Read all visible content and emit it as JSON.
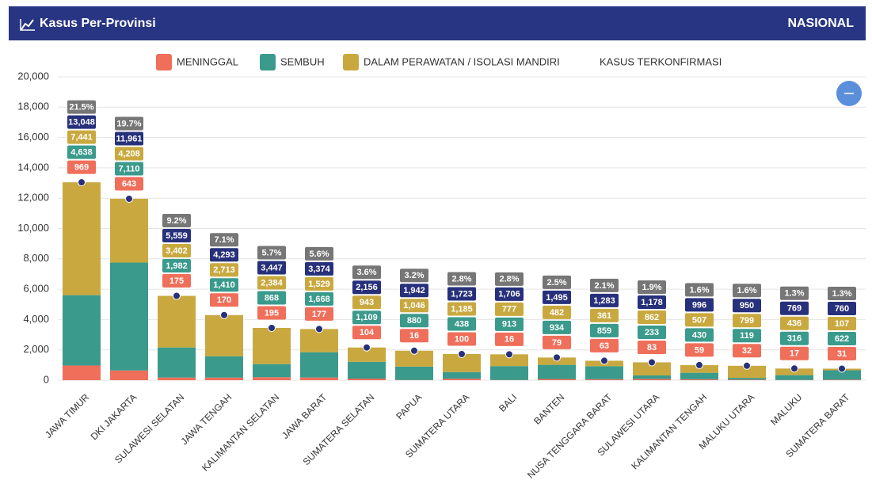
{
  "header": {
    "title": "Kasus Per-Provinsi",
    "scope": "NASIONAL"
  },
  "chart_data": {
    "type": "bar",
    "stacked": true,
    "grid": true,
    "categories": [
      "JAWA TIMUR",
      "DKI JAKARTA",
      "SULAWESI SELATAN",
      "JAWA TENGAH",
      "KALIMANTAN SELATAN",
      "JAWA BARAT",
      "SUMATERA SELATAN",
      "PAPUA",
      "SUMATERA UTARA",
      "BALI",
      "BANTEN",
      "NUSA TENGGARA BARAT",
      "SULAWESI UTARA",
      "KALIMANTAN TENGAH",
      "MALUKU UTARA",
      "MALUKU",
      "SUMATERA BARAT"
    ],
    "series": [
      {
        "name": "MENINGGAL",
        "color": "#ef6f5b",
        "values": [
          969,
          643,
          175,
          170,
          195,
          177,
          104,
          16,
          100,
          16,
          79,
          63,
          83,
          59,
          32,
          17,
          31
        ],
        "value_labels": [
          "969",
          "643",
          "175",
          "170",
          "195",
          "177",
          "104",
          "16",
          "100",
          "16",
          "79",
          "63",
          "83",
          "59",
          "32",
          "17",
          "31"
        ]
      },
      {
        "name": "SEMBUH",
        "color": "#3a9a8c",
        "values": [
          4638,
          7110,
          1982,
          1410,
          868,
          1668,
          1109,
          880,
          438,
          913,
          934,
          859,
          233,
          430,
          119,
          316,
          622
        ],
        "value_labels": [
          "4,638",
          "7,110",
          "1,982",
          "1,410",
          "868",
          "1,668",
          "1,109",
          "880",
          "438",
          "913",
          "934",
          "859",
          "233",
          "430",
          "119",
          "316",
          "622"
        ]
      },
      {
        "name": "DALAM PERAWATAN / ISOLASI MANDIRI",
        "color": "#c9a93f",
        "values": [
          7441,
          4208,
          3402,
          2713,
          2384,
          1529,
          943,
          1046,
          1185,
          777,
          482,
          361,
          862,
          507,
          799,
          436,
          107
        ],
        "value_labels": [
          "7,441",
          "4,208",
          "3,402",
          "2,713",
          "2,384",
          "1,529",
          "943",
          "1,046",
          "1,185",
          "777",
          "482",
          "361",
          "862",
          "507",
          "799",
          "436",
          "107"
        ]
      },
      {
        "name": "KASUS TERKONFIRMASI",
        "color": "#27307a",
        "type": "point",
        "values": [
          13048,
          11961,
          5559,
          4293,
          3447,
          3374,
          2156,
          1942,
          1723,
          1706,
          1495,
          1283,
          1178,
          996,
          950,
          769,
          760
        ],
        "value_labels": [
          "13,048",
          "11,961",
          "5,559",
          "4,293",
          "3,447",
          "3,374",
          "2,156",
          "1,942",
          "1,723",
          "1,706",
          "1,495",
          "1,283",
          "1,178",
          "996",
          "950",
          "769",
          "760"
        ]
      }
    ],
    "percent": {
      "color": "#767676",
      "values": [
        21.5,
        19.7,
        9.2,
        7.1,
        5.7,
        5.6,
        3.6,
        3.2,
        2.8,
        2.8,
        2.5,
        2.1,
        1.9,
        1.6,
        1.6,
        1.3,
        1.3
      ],
      "value_labels": [
        "21.5%",
        "19.7%",
        "9.2%",
        "7.1%",
        "5.7%",
        "5.6%",
        "3.6%",
        "3.2%",
        "2.8%",
        "2.8%",
        "2.5%",
        "2.1%",
        "1.9%",
        "1.6%",
        "1.6%",
        "1.3%",
        "1.3%"
      ]
    },
    "ylim": [
      0,
      20000
    ],
    "yticks": [
      0,
      {
        "value": 2000,
        "label": "2,000"
      },
      {
        "value": 4000,
        "label": "4,000"
      },
      {
        "value": 6000,
        "label": "6,000"
      },
      {
        "value": 8000,
        "label": "8,000"
      },
      {
        "value": 10000,
        "label": "10,000"
      },
      {
        "value": 12000,
        "label": "12,000"
      },
      {
        "value": 14000,
        "label": "14,000"
      },
      {
        "value": 16000,
        "label": "16,000"
      },
      {
        "value": 18000,
        "label": "18,000"
      },
      {
        "value": 20000,
        "label": "20,000"
      }
    ]
  }
}
